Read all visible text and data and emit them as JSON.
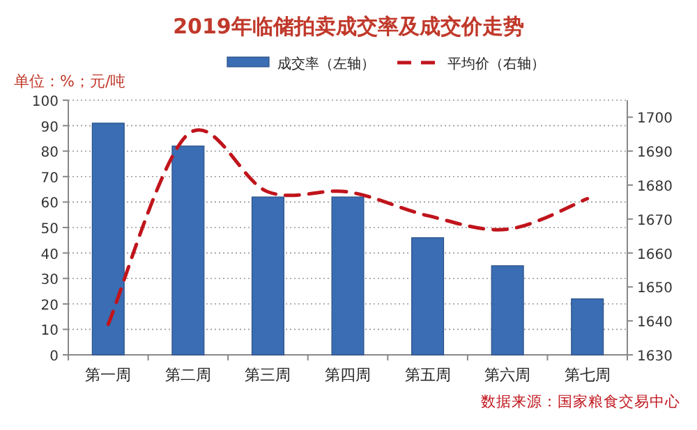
{
  "chart_data": {
    "type": "bar",
    "title": "2019年临储拍卖成交率及成交价走势",
    "ylabel": "单位：%；元/吨",
    "categories": [
      "第一周",
      "第二周",
      "第三周",
      "第四周",
      "第五周",
      "第六周",
      "第七周"
    ],
    "series": [
      {
        "name": "成交率（左轴）",
        "color": "#3a6db3",
        "values": [
          91,
          82,
          62,
          62,
          46,
          35,
          22
        ]
      },
      {
        "name": "平均价（右轴）",
        "type": "line",
        "axis": "y2",
        "color": "#c0141c",
        "line_style": "dashed",
        "values": [
          1639,
          1695,
          1678,
          1678,
          1671,
          1667,
          1676
        ]
      }
    ],
    "ylim": [
      0,
      100
    ],
    "yticks": [
      0,
      10,
      20,
      30,
      40,
      50,
      60,
      70,
      80,
      90,
      100
    ],
    "y2lim": [
      1630,
      1705
    ],
    "y2ticks": [
      1630,
      1640,
      1650,
      1660,
      1670,
      1680,
      1690,
      1700
    ],
    "grid": "y",
    "legend": "top",
    "marker": "none",
    "annotations": [
      "数据来源：国家粮食交易中心"
    ]
  }
}
